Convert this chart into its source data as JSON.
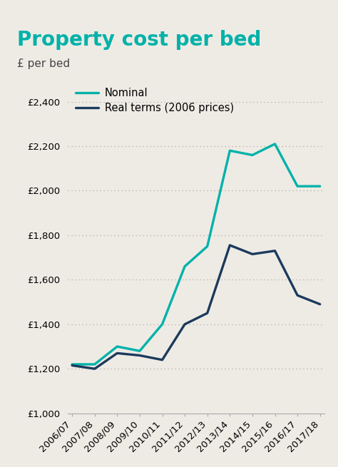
{
  "title": "Property cost per bed",
  "subtitle": "£ per bed",
  "years": [
    "2006/07",
    "2007/08",
    "2008/09",
    "2009/10",
    "2010/11",
    "2011/12",
    "2012/13",
    "2013/14",
    "2014/15",
    "2015/16",
    "2016/17",
    "2017/18"
  ],
  "nominal": [
    1220,
    1220,
    1300,
    1280,
    1400,
    1660,
    1750,
    2180,
    2160,
    2210,
    2020,
    2020
  ],
  "real": [
    1215,
    1200,
    1270,
    1260,
    1240,
    1400,
    1450,
    1755,
    1715,
    1730,
    1530,
    1490
  ],
  "nominal_color": "#00B2A9",
  "real_color": "#1B3A5C",
  "background_color": "#eeebe5",
  "title_color": "#00B2A9",
  "subtitle_color": "#444444",
  "ylim": [
    1000,
    2500
  ],
  "yticks": [
    1000,
    1200,
    1400,
    1600,
    1800,
    2000,
    2200,
    2400
  ],
  "legend_nominal": "Nominal",
  "legend_real": "Real terms (2006 prices)",
  "header_bar_color": "#00B2A9",
  "title_fontsize": 20,
  "subtitle_fontsize": 11,
  "tick_fontsize": 9.5
}
